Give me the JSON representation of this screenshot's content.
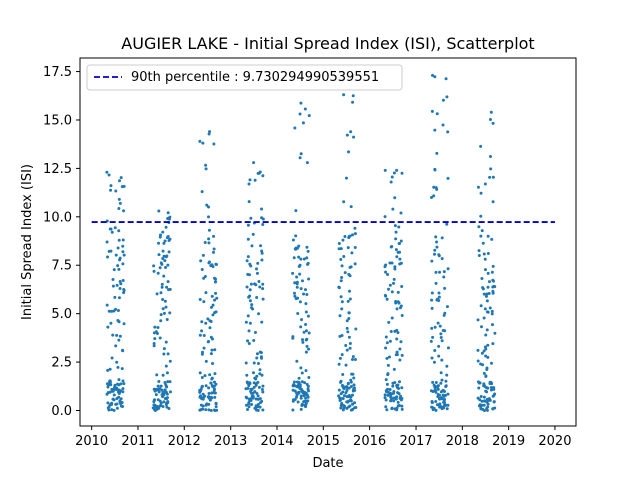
{
  "chart_data": {
    "type": "scatter",
    "title": "AUGIER LAKE - Initial Spread Index (ISI), Scatterplot",
    "xlabel": "Date",
    "ylabel": "Initial Spread Index (ISI)",
    "xlim": [
      "2009-10-01",
      "2020-06-15"
    ],
    "ylim": [
      -0.8,
      18.2
    ],
    "x_ticks": [
      "2010",
      "2011",
      "2012",
      "2013",
      "2014",
      "2015",
      "2016",
      "2017",
      "2018",
      "2019",
      "2020"
    ],
    "y_ticks": [
      "0.0",
      "2.5",
      "5.0",
      "7.5",
      "10.0",
      "12.5",
      "15.0",
      "17.5"
    ],
    "grid": false,
    "legend_position": "top-left",
    "marker_color": "#1f77b4",
    "reference_line": {
      "label": "90th percentile : 9.730294990539551",
      "value": 9.730294990539551,
      "color": "#0000cc",
      "style": "dashed",
      "x_start": "2010-01-01",
      "x_end": "2020-01-01"
    },
    "series": [
      {
        "fire_season_start": [
          "2010-05-01",
          "2011-05-01",
          "2012-05-01",
          "2013-05-01",
          "2014-05-01",
          "2015-05-01",
          "2016-05-01",
          "2017-05-01",
          "2018-05-01"
        ],
        "fire_season_end": [
          "2010-09-15",
          "2011-09-15",
          "2012-09-15",
          "2013-09-15",
          "2014-09-15",
          "2015-09-15",
          "2016-09-15",
          "2017-09-15",
          "2018-09-15"
        ],
        "yearly_max": [
          12.3,
          10.3,
          14.4,
          12.8,
          16.7,
          16.3,
          12.4,
          17.3,
          15.4
        ],
        "points_per_year": 130
      }
    ]
  }
}
